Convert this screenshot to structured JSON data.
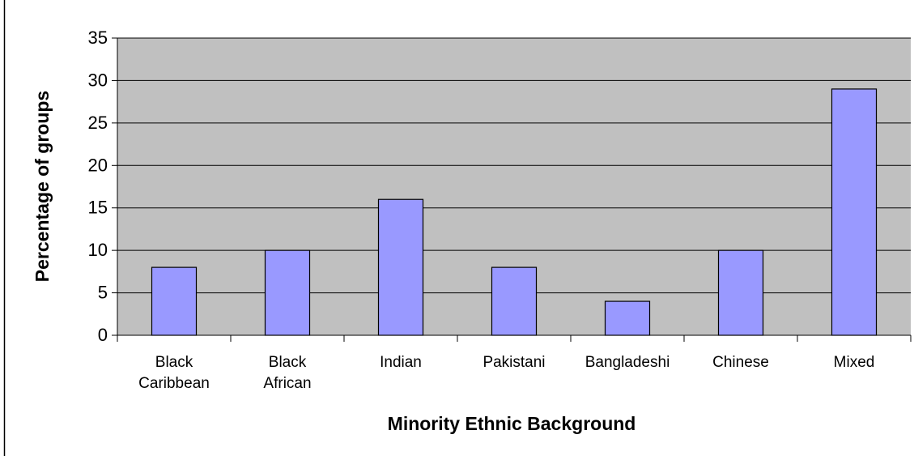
{
  "chart_data": {
    "type": "bar",
    "categories": [
      [
        "Black",
        "Caribbean"
      ],
      [
        "Black",
        "African"
      ],
      [
        "Indian"
      ],
      [
        "Pakistani"
      ],
      [
        "Bangladeshi"
      ],
      [
        "Chinese"
      ],
      [
        "Mixed"
      ]
    ],
    "values": [
      8,
      10,
      16,
      8,
      4,
      10,
      29
    ],
    "title": "",
    "xlabel": "Minority Ethnic Background",
    "ylabel": "Percentage of groups",
    "ylim": [
      0,
      35
    ],
    "yticks": [
      0,
      5,
      10,
      15,
      20,
      25,
      30,
      35
    ],
    "grid": true,
    "legend": "none"
  },
  "colors": {
    "plot_background": "#c0c0c0",
    "bar_fill": "#9999ff",
    "bar_stroke": "#000000",
    "gridline": "#000000",
    "text": "#000000"
  }
}
